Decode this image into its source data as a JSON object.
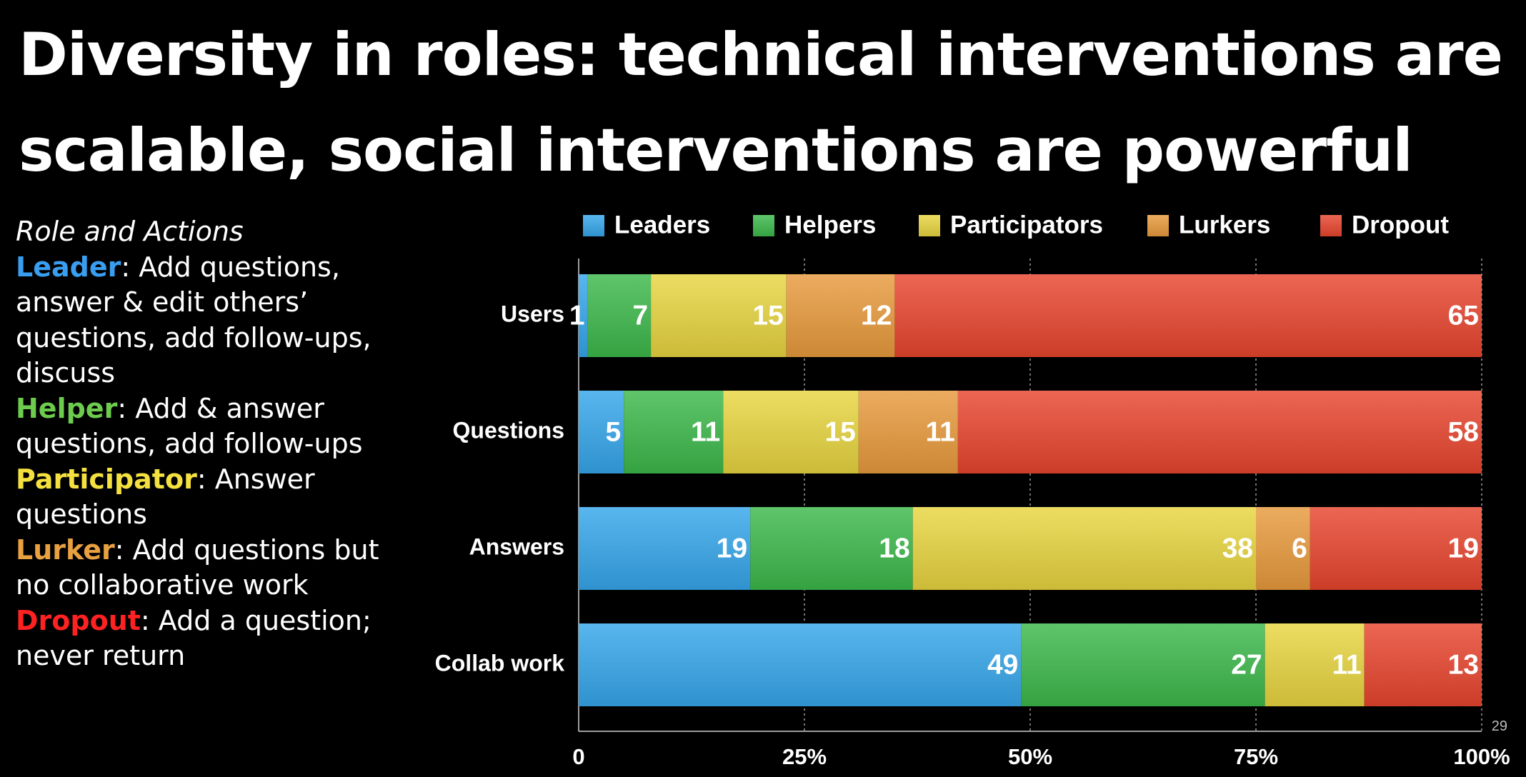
{
  "title": "Diversity in roles: technical interventions are scalable, social interventions are powerful",
  "roles_panel": {
    "heading": "Role and Actions",
    "items": [
      {
        "name": "Leader",
        "text": ": Add questions, answer & edit others’ questions, add follow-ups, discuss",
        "color": "#3a9ef0"
      },
      {
        "name": "Helper",
        "text": ": Add & answer questions, add follow-ups",
        "color": "#6dcc4e"
      },
      {
        "name": "Participator",
        "text": ": Answer questions",
        "color": "#f4e03e"
      },
      {
        "name": "Lurker",
        "text": ": Add questions but no collaborative work",
        "color": "#e8a040"
      },
      {
        "name": "Dropout",
        "text": ": Add a question; never return",
        "color": "#ff2222"
      }
    ]
  },
  "chart_data": {
    "type": "bar",
    "orientation": "horizontal",
    "stacked": "percent",
    "categories": [
      "Users",
      "Questions",
      "Answers",
      "Collab work"
    ],
    "series": [
      {
        "name": "Leaders",
        "values": [
          1,
          5,
          19,
          49
        ],
        "color": "#35a6ea"
      },
      {
        "name": "Helpers",
        "values": [
          7,
          11,
          18,
          27
        ],
        "color": "#3cb84a"
      },
      {
        "name": "Participators",
        "values": [
          15,
          15,
          38,
          11
        ],
        "color": "#e8d540"
      },
      {
        "name": "Lurkers",
        "values": [
          12,
          11,
          6,
          0
        ],
        "color": "#e89a3c"
      },
      {
        "name": "Dropout",
        "values": [
          65,
          58,
          19,
          13
        ],
        "color": "#e8452e"
      }
    ],
    "x_ticks": [
      "0",
      "25%",
      "50%",
      "75%",
      "100%"
    ],
    "xlim": [
      0,
      100
    ],
    "grid": "vertical dotted",
    "legend_position": "top"
  },
  "page_number": "29"
}
